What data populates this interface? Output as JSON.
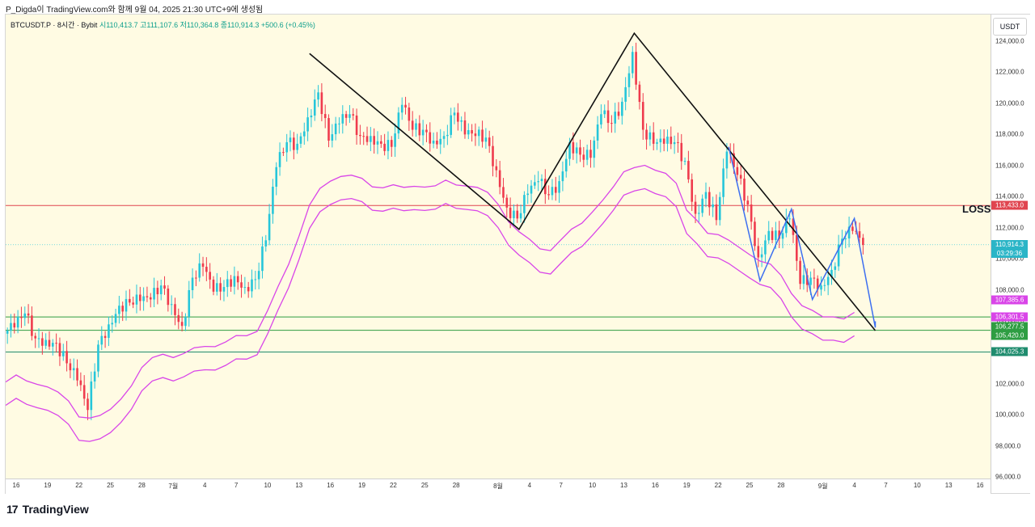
{
  "caption": "P_Digda이 TradingView.com와 함께 9월 04, 2025 21:30 UTC+9에 생성됨",
  "brand": "TradingView",
  "brand_mark": "17",
  "symbol_line": {
    "symbol": "BTCUSDT.P · 8시간 · Bybit",
    "ohlc": "시110,413.7  고111,107.6  저110,364.8  종110,914.3  +500.6 (+0.45%)"
  },
  "currency": "USDT",
  "annotation": "LOSS",
  "colors": {
    "up": "#26c6da",
    "down": "#ef3b4d",
    "loss_line": "#e0454f",
    "support_line": "#2e9d42",
    "deep_support": "#1f8c6e",
    "envelope": "#d945e8",
    "trend": "#111111",
    "pattern": "#3d6ff0",
    "background": "#fffbe3"
  },
  "price_tags": [
    {
      "label": "113,433.0",
      "color": "#e0454f"
    },
    {
      "label": "110,914.3",
      "label2": "03:29:36",
      "color": "#2bb5c7"
    },
    {
      "label": "107,385.6",
      "color": "#d945e8"
    },
    {
      "label": "106,301.5",
      "color": "#d945e8"
    },
    {
      "label": "106,277.5",
      "color": "#2e9d42"
    },
    {
      "label": "105,420.0",
      "color": "#2e9d42"
    },
    {
      "label": "104,025.3",
      "color": "#1f8c6e"
    }
  ],
  "chart_data": {
    "type": "candlestick",
    "symbol": "BTCUSDT.P",
    "timeframe": "8시간",
    "exchange": "Bybit",
    "y_ticks": [
      "96,000.0",
      "98,000.0",
      "100,000.0",
      "102,000.0",
      "104,000.0",
      "106,000.0",
      "108,000.0",
      "110,000.0",
      "112,000.0",
      "114,000.0",
      "116,000.0",
      "118,000.0",
      "120,000.0",
      "122,000.0",
      "124,000.0"
    ],
    "ylim": [
      95900,
      125700
    ],
    "x_ticks": [
      "16",
      "19",
      "22",
      "25",
      "28",
      "7월",
      "4",
      "7",
      "10",
      "13",
      "16",
      "19",
      "22",
      "25",
      "28",
      "8월",
      "4",
      "7",
      "10",
      "13",
      "16",
      "19",
      "22",
      "25",
      "28",
      "9월",
      "4",
      "7",
      "10",
      "13",
      "16"
    ],
    "xlim": [
      "2025-06-15",
      "2025-09-17"
    ],
    "series": [
      {
        "name": "BTCUSDT.P",
        "daily_close": [
          [
            "2025-06-15",
            105600
          ],
          [
            "2025-06-16",
            106500
          ],
          [
            "2025-06-17",
            104900
          ],
          [
            "2025-06-18",
            104800
          ],
          [
            "2025-06-19",
            104600
          ],
          [
            "2025-06-20",
            103300
          ],
          [
            "2025-06-21",
            102200
          ],
          [
            "2025-06-22",
            100300
          ],
          [
            "2025-06-23",
            104500
          ],
          [
            "2025-06-24",
            105800
          ],
          [
            "2025-06-25",
            107000
          ],
          [
            "2025-06-26",
            107200
          ],
          [
            "2025-06-27",
            107300
          ],
          [
            "2025-06-28",
            107400
          ],
          [
            "2025-06-29",
            108300
          ],
          [
            "2025-06-30",
            107100
          ],
          [
            "2025-07-01",
            105700
          ],
          [
            "2025-07-02",
            108800
          ],
          [
            "2025-07-03",
            109500
          ],
          [
            "2025-07-04",
            107900
          ],
          [
            "2025-07-05",
            108200
          ],
          [
            "2025-07-06",
            108900
          ],
          [
            "2025-07-07",
            108200
          ],
          [
            "2025-07-08",
            108700
          ],
          [
            "2025-07-09",
            111200
          ],
          [
            "2025-07-10",
            115900
          ],
          [
            "2025-07-11",
            117500
          ],
          [
            "2025-07-12",
            117400
          ],
          [
            "2025-07-13",
            119100
          ],
          [
            "2025-07-14",
            120700
          ],
          [
            "2025-07-15",
            117600
          ],
          [
            "2025-07-16",
            118700
          ],
          [
            "2025-07-17",
            119300
          ],
          [
            "2025-07-18",
            117900
          ],
          [
            "2025-07-19",
            117900
          ],
          [
            "2025-07-20",
            117400
          ],
          [
            "2025-07-21",
            117200
          ],
          [
            "2025-07-22",
            119900
          ],
          [
            "2025-07-23",
            118300
          ],
          [
            "2025-07-24",
            118300
          ],
          [
            "2025-07-25",
            117600
          ],
          [
            "2025-07-26",
            117900
          ],
          [
            "2025-07-27",
            119400
          ],
          [
            "2025-07-28",
            118000
          ],
          [
            "2025-07-29",
            117900
          ],
          [
            "2025-07-30",
            117800
          ],
          [
            "2025-07-31",
            115700
          ],
          [
            "2025-08-01",
            113300
          ],
          [
            "2025-08-02",
            112600
          ],
          [
            "2025-08-03",
            114200
          ],
          [
            "2025-08-04",
            115000
          ],
          [
            "2025-08-05",
            114100
          ],
          [
            "2025-08-06",
            115000
          ],
          [
            "2025-08-07",
            117500
          ],
          [
            "2025-08-08",
            116700
          ],
          [
            "2025-08-09",
            116500
          ],
          [
            "2025-08-10",
            119300
          ],
          [
            "2025-08-11",
            118700
          ],
          [
            "2025-08-12",
            120100
          ],
          [
            "2025-08-13",
            123300
          ],
          [
            "2025-08-14",
            118300
          ],
          [
            "2025-08-15",
            117400
          ],
          [
            "2025-08-16",
            117400
          ],
          [
            "2025-08-17",
            117500
          ],
          [
            "2025-08-18",
            116300
          ],
          [
            "2025-08-19",
            112900
          ],
          [
            "2025-08-20",
            114300
          ],
          [
            "2025-08-21",
            112500
          ],
          [
            "2025-08-22",
            116900
          ],
          [
            "2025-08-23",
            115400
          ],
          [
            "2025-08-24",
            113500
          ],
          [
            "2025-08-25",
            110100
          ],
          [
            "2025-08-26",
            111800
          ],
          [
            "2025-08-27",
            111300
          ],
          [
            "2025-08-28",
            112600
          ],
          [
            "2025-08-29",
            108400
          ],
          [
            "2025-08-30",
            108800
          ],
          [
            "2025-08-31",
            108300
          ],
          [
            "2025-09-01",
            109300
          ],
          [
            "2025-09-02",
            111300
          ],
          [
            "2025-09-03",
            111800
          ],
          [
            "2025-09-04",
            110900
          ]
        ]
      }
    ],
    "horizontal_lines": [
      {
        "label": "LOSS",
        "price": 113433.0
      },
      {
        "price": 106277.5
      },
      {
        "price": 105420.0
      },
      {
        "price": 104025.3
      }
    ],
    "current_price": 110914.3,
    "bar_countdown": "03:29:36",
    "envelope_last": [
      107385.6,
      106301.5
    ],
    "trend_lines": [
      [
        [
          "2025-07-14",
          123200
        ],
        [
          "2025-08-03",
          111900
        ],
        [
          "2025-08-14",
          124500
        ],
        [
          "2025-09-06",
          105400
        ]
      ]
    ],
    "pattern_lines": [
      [
        [
          "2025-08-23",
          117200
        ],
        [
          "2025-08-26",
          108600
        ],
        [
          "2025-08-29",
          113200
        ],
        [
          "2025-08-31",
          107400
        ],
        [
          "2025-09-04",
          112600
        ],
        [
          "2025-09-06",
          105600
        ],
        [
          "2025-09-06",
          106000
        ]
      ]
    ],
    "grid": false,
    "legend": "none"
  }
}
